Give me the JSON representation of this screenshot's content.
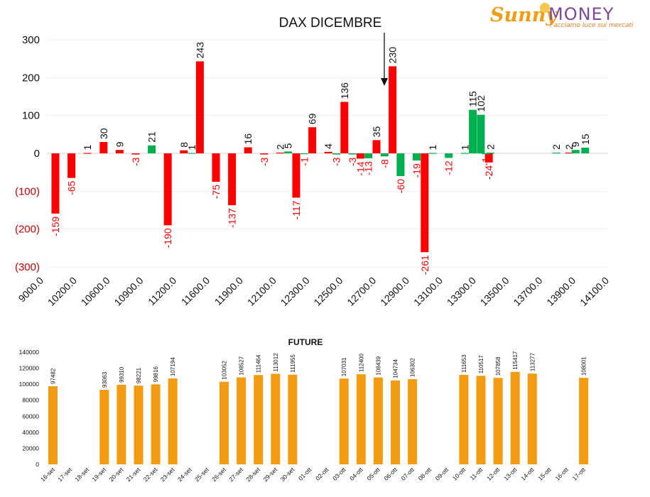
{
  "logo": {
    "brand_part1": "Sunny",
    "brand_part2": "MONEY",
    "tagline": "Facciamo luce sui mercati"
  },
  "colors": {
    "positive": "#00b050",
    "negative": "#ff0000",
    "future_bar": "#f39c12",
    "axis_negative_label": "#cc0000"
  },
  "chart_data": [
    {
      "type": "bar",
      "title": "DAX DICEMBRE",
      "ylim": [
        -300,
        300
      ],
      "yticks": [
        {
          "v": 300,
          "label": "300"
        },
        {
          "v": 200,
          "label": "200"
        },
        {
          "v": 100,
          "label": "100"
        },
        {
          "v": 0,
          "label": "0"
        },
        {
          "v": -100,
          "label": "(100)"
        },
        {
          "v": -200,
          "label": "(200)"
        },
        {
          "v": -300,
          "label": "(300)"
        }
      ],
      "x_tick_labels": [
        "9000.0",
        "10200.0",
        "10600.0",
        "10900.0",
        "11200.0",
        "11600.0",
        "11900.0",
        "12100.0",
        "12300.0",
        "12500.0",
        "12700.0",
        "12900.0",
        "13100.0",
        "13300.0",
        "13500.0",
        "13700.0",
        "13900.0",
        "14100.0"
      ],
      "annotation": "arrow pointing down between 12700.0 and 12900.0",
      "series": [
        {
          "color": "red",
          "bars": [
            {
              "slot": 0,
              "value": -159
            },
            {
              "slot": 1,
              "value": -65
            },
            {
              "slot": 2,
              "value": 1
            },
            {
              "slot": 3,
              "value": 30
            },
            {
              "slot": 4,
              "value": 9
            },
            {
              "slot": 5,
              "value": -3
            },
            {
              "slot": 7,
              "value": -190
            },
            {
              "slot": 8,
              "value": 8
            },
            {
              "slot": 9,
              "value": 243
            },
            {
              "slot": 10,
              "value": -75
            },
            {
              "slot": 11,
              "value": -137
            },
            {
              "slot": 12,
              "value": 16
            },
            {
              "slot": 13,
              "value": -3
            },
            {
              "slot": 14,
              "value": 2
            },
            {
              "slot": 15,
              "value": -117
            },
            {
              "slot": 16,
              "value": 69
            },
            {
              "slot": 17,
              "value": 4
            },
            {
              "slot": 18,
              "value": 136
            },
            {
              "slot": 19,
              "value": -14
            },
            {
              "slot": 20,
              "value": 35
            },
            {
              "slot": 21,
              "value": 230
            },
            {
              "slot": 23,
              "value": -261
            },
            {
              "slot": 27,
              "value": -24
            },
            {
              "slot": 32,
              "value": 2
            }
          ]
        },
        {
          "color": "green",
          "bars": [
            {
              "slot": 6,
              "value": 21
            },
            {
              "slot": 8.5,
              "value": 1
            },
            {
              "slot": 14.5,
              "value": 5
            },
            {
              "slot": 15.5,
              "value": -1
            },
            {
              "slot": 17.5,
              "value": -3
            },
            {
              "slot": 18.5,
              "value": -3
            },
            {
              "slot": 19.5,
              "value": -13
            },
            {
              "slot": 20.5,
              "value": -8
            },
            {
              "slot": 21.5,
              "value": -60
            },
            {
              "slot": 22.5,
              "value": -19
            },
            {
              "slot": 23.5,
              "value": 1
            },
            {
              "slot": 24.5,
              "value": -12
            },
            {
              "slot": 25.5,
              "value": 1
            },
            {
              "slot": 26,
              "value": 115
            },
            {
              "slot": 26.5,
              "value": 102
            },
            {
              "slot": 26.8,
              "value": -1
            },
            {
              "slot": 27.1,
              "value": 2
            },
            {
              "slot": 31.2,
              "value": 2
            },
            {
              "slot": 32.4,
              "value": 9
            },
            {
              "slot": 33,
              "value": 15
            }
          ]
        }
      ]
    },
    {
      "type": "bar",
      "title": "FUTURE",
      "ylim": [
        0,
        140000
      ],
      "yticks": [
        "0",
        "20000",
        "40000",
        "60000",
        "80000",
        "100000",
        "120000",
        "140000"
      ],
      "categories": [
        "16-set",
        "17-set",
        "18-set",
        "19-set",
        "20-set",
        "21-set",
        "22-set",
        "23-set",
        "24-set",
        "25-set",
        "26-set",
        "27-set",
        "28-set",
        "29-set",
        "30-set",
        "01-ott",
        "02-ott",
        "03-ott",
        "04-ott",
        "05-ott",
        "06-ott",
        "07-ott",
        "08-ott",
        "09-ott",
        "10-ott",
        "11-ott",
        "12-ott",
        "13-ott",
        "14-ott",
        "15-ott",
        "16-ott",
        "17-ott"
      ],
      "values": [
        97482,
        null,
        null,
        93063,
        99310,
        98221,
        99816,
        107194,
        null,
        null,
        103052,
        108527,
        111464,
        113012,
        111955,
        null,
        null,
        107031,
        112400,
        108439,
        104734,
        106302,
        null,
        null,
        111653,
        110517,
        107858,
        115417,
        113277,
        null,
        null,
        108001
      ]
    }
  ]
}
